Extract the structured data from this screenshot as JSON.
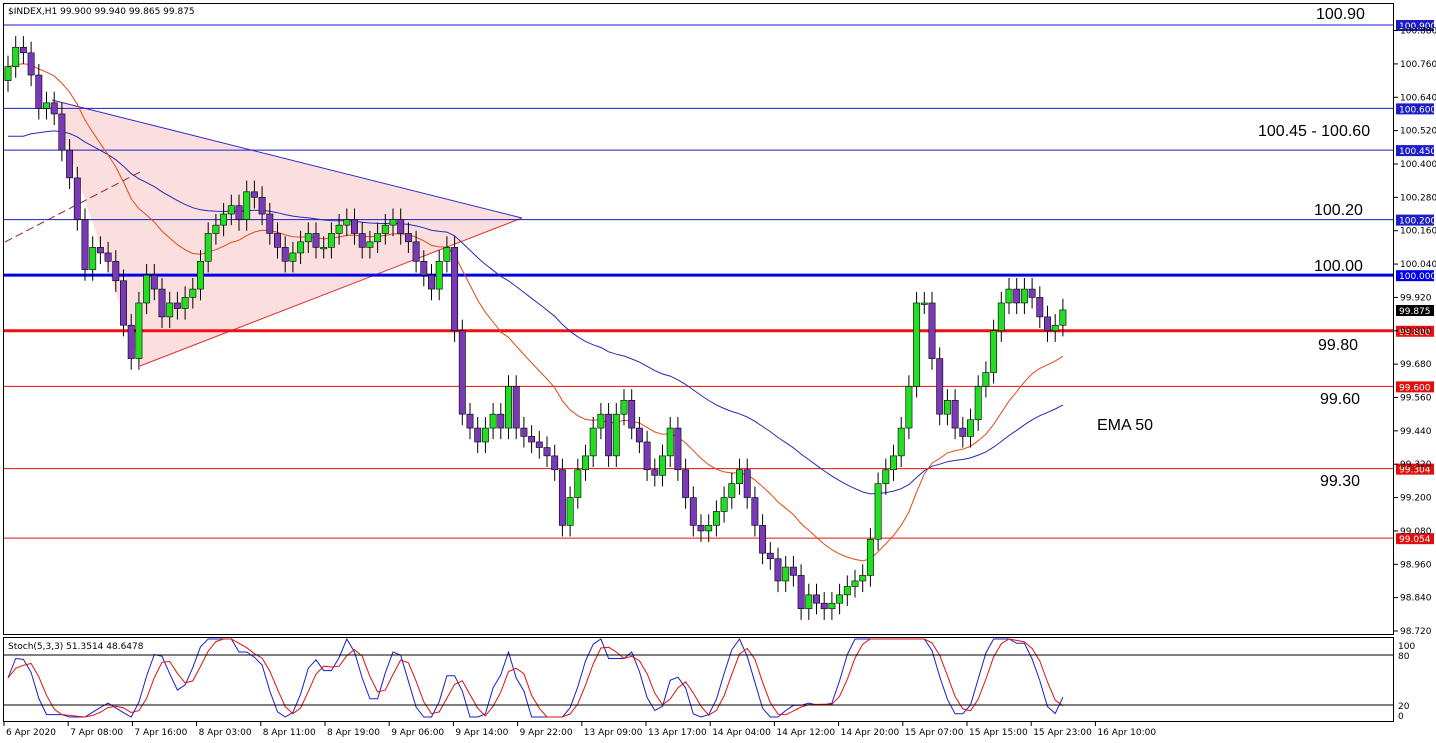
{
  "chart_data": {
    "type": "candlestick",
    "header": "$INDEX,H1  99.900 99.940 99.865 99.875",
    "current_price": "99.875",
    "y_ticks": [
      "100.880",
      "100.760",
      "100.640",
      "100.520",
      "100.400",
      "100.280",
      "100.160",
      "100.040",
      "99.920",
      "99.800",
      "99.680",
      "99.560",
      "99.440",
      "99.320",
      "99.200",
      "99.080",
      "98.960",
      "98.840",
      "98.720"
    ],
    "x_labels": [
      "6 Apr 2020",
      "7 Apr 08:00",
      "7 Apr 16:00",
      "8 Apr 03:00",
      "8 Apr 11:00",
      "8 Apr 19:00",
      "9 Apr 06:00",
      "9 Apr 14:00",
      "9 Apr 22:00",
      "13 Apr 09:00",
      "13 Apr 17:00",
      "14 Apr 04:00",
      "14 Apr 12:00",
      "14 Apr 20:00",
      "15 Apr 07:00",
      "15 Apr 15:00",
      "15 Apr 23:00",
      "16 Apr 10:00"
    ],
    "levels": [
      {
        "value": 100.9,
        "label": "100.900",
        "color": "#1c1cc8",
        "width": 1
      },
      {
        "value": 100.6,
        "label": "100.600",
        "color": "#1c1cc8",
        "width": 1
      },
      {
        "value": 100.45,
        "label": "100.450",
        "color": "#1c1cc8",
        "width": 1
      },
      {
        "value": 100.2,
        "label": "100.200",
        "color": "#1c1cc8",
        "width": 1
      },
      {
        "value": 100.0,
        "label": "100.000",
        "color": "#0000e8",
        "width": 3
      },
      {
        "value": 99.8,
        "label": "99.800",
        "color": "#ee1111",
        "width": 3
      },
      {
        "value": 99.6,
        "label": "99.600",
        "color": "#e01010",
        "width": 1
      },
      {
        "value": 99.304,
        "label": "99.304",
        "color": "#e01010",
        "width": 1
      },
      {
        "value": 99.054,
        "label": "99.054",
        "color": "#e01010",
        "width": 1
      }
    ],
    "annotations": [
      "100.90",
      "100.45 - 100.60",
      "100.20",
      "100.00",
      "99.80",
      "99.60",
      "99.30",
      "EMA 50"
    ],
    "closes": [
      100.75,
      100.82,
      100.8,
      100.72,
      100.6,
      100.62,
      100.58,
      100.45,
      100.35,
      100.2,
      100.02,
      100.1,
      100.08,
      100.05,
      99.98,
      99.82,
      99.7,
      99.9,
      100.0,
      99.95,
      99.85,
      99.9,
      99.88,
      99.92,
      99.95,
      100.05,
      100.15,
      100.18,
      100.22,
      100.25,
      100.2,
      100.3,
      100.28,
      100.22,
      100.15,
      100.1,
      100.05,
      100.08,
      100.12,
      100.15,
      100.1,
      100.1,
      100.15,
      100.18,
      100.2,
      100.15,
      100.1,
      100.12,
      100.15,
      100.18,
      100.2,
      100.15,
      100.12,
      100.05,
      100.0,
      99.95,
      100.05,
      100.1,
      99.8,
      99.5,
      99.45,
      99.4,
      99.45,
      99.5,
      99.45,
      99.6,
      99.45,
      99.42,
      99.4,
      99.38,
      99.35,
      99.3,
      99.1,
      99.2,
      99.3,
      99.35,
      99.45,
      99.5,
      99.35,
      99.5,
      99.55,
      99.45,
      99.4,
      99.3,
      99.28,
      99.35,
      99.45,
      99.3,
      99.2,
      99.1,
      99.08,
      99.1,
      99.15,
      99.2,
      99.25,
      99.3,
      99.2,
      99.1,
      99.0,
      98.98,
      98.9,
      98.95,
      98.92,
      98.8,
      98.85,
      98.82,
      98.8,
      98.82,
      98.85,
      98.88,
      98.9,
      98.92,
      99.05,
      99.25,
      99.3,
      99.35,
      99.45,
      99.6,
      99.9,
      99.9,
      99.7,
      99.5,
      99.55,
      99.45,
      99.42,
      99.48,
      99.6,
      99.65,
      99.8,
      99.9,
      99.95,
      99.9,
      99.95,
      99.92,
      99.85,
      99.8,
      99.82,
      99.875
    ],
    "stoch_header": "Stoch(5,3,3) 51.3514 48.6478",
    "stoch_levels": [
      "100",
      "80",
      "20",
      "0"
    ]
  }
}
